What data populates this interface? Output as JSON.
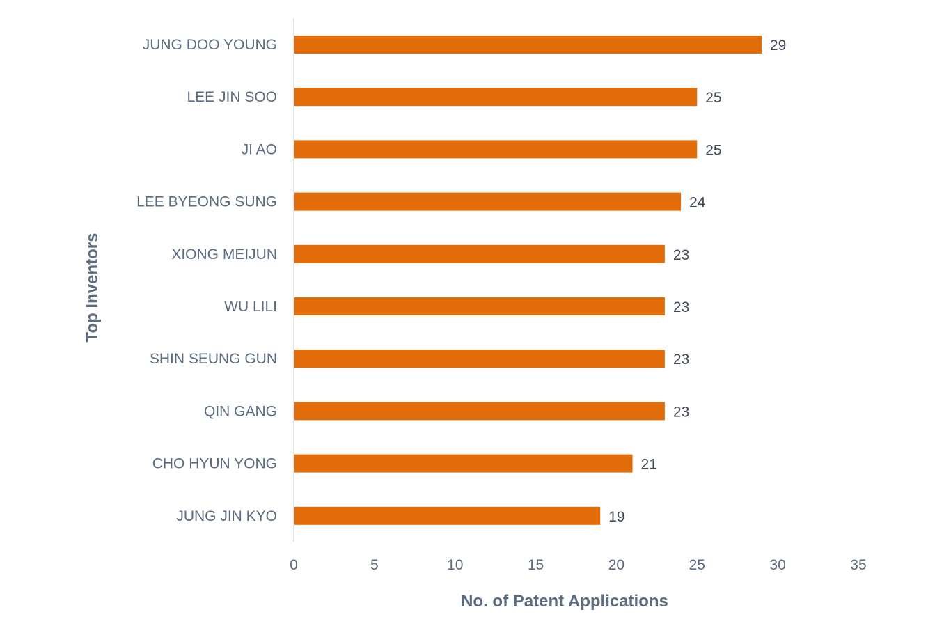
{
  "chart_data": {
    "type": "bar",
    "orientation": "horizontal",
    "title": "",
    "xlabel": "No. of Patent Applications",
    "ylabel": "Top Inventors",
    "categories": [
      "JUNG DOO YOUNG",
      "LEE JIN SOO",
      "JI AO",
      "LEE BYEONG SUNG",
      "XIONG MEIJUN",
      "WU LILI",
      "SHIN SEUNG GUN",
      "QIN GANG",
      "CHO HYUN YONG",
      "JUNG JIN KYO"
    ],
    "values": [
      29,
      25,
      25,
      24,
      23,
      23,
      23,
      23,
      21,
      19
    ],
    "xlim": [
      0,
      35
    ],
    "xticks": [
      0,
      5,
      10,
      15,
      20,
      25,
      30,
      35
    ],
    "grid": false,
    "legend": "none",
    "data_labels": true
  },
  "colors": {
    "bar": "#e36c0a",
    "axis_line": "#d9d9d9"
  }
}
